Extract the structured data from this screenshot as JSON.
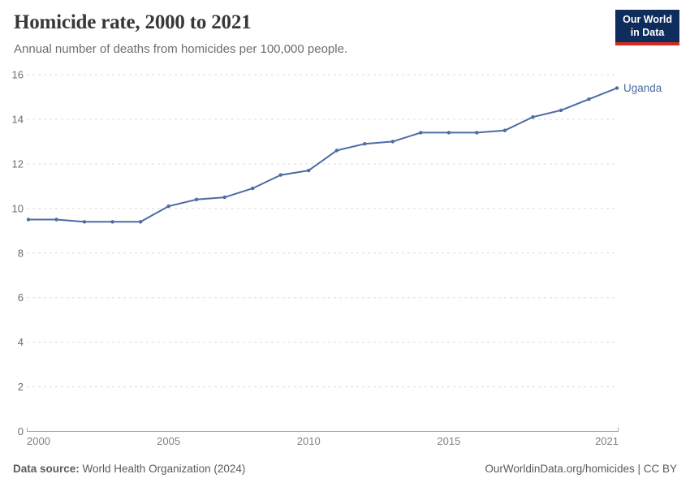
{
  "header": {
    "title": "Homicide rate, 2000 to 2021",
    "subtitle": "Annual number of deaths from homicides per 100,000 people.",
    "logo": {
      "line1": "Our World",
      "line2": "in Data"
    }
  },
  "colors": {
    "series_blue": "#4d6ba3",
    "logo_navy": "#0f2d5c",
    "logo_red": "#d42b21",
    "gridline": "#dcdcdc",
    "axis_line": "#a3a3a3",
    "ytick_label": "#6e6e6e",
    "xtick_label": "#808080",
    "title_text": "#373737",
    "subtitle_text": "#6e6e6e",
    "footer_text": "#5b5b5b"
  },
  "chart_data": {
    "type": "line",
    "title": "Homicide rate, 2000 to 2021",
    "xlabel": "",
    "ylabel": "",
    "x": [
      2000,
      2001,
      2002,
      2003,
      2004,
      2005,
      2006,
      2007,
      2008,
      2009,
      2010,
      2011,
      2012,
      2013,
      2014,
      2015,
      2016,
      2017,
      2018,
      2019,
      2020,
      2021
    ],
    "series": [
      {
        "name": "Uganda",
        "values": [
          9.5,
          9.5,
          9.4,
          9.4,
          9.4,
          10.1,
          10.4,
          10.5,
          10.9,
          11.5,
          11.7,
          12.6,
          12.9,
          13.0,
          13.4,
          13.4,
          13.4,
          13.5,
          14.1,
          14.4,
          14.9,
          15.4
        ]
      }
    ],
    "ylim": [
      0,
      16
    ],
    "yticks": [
      0,
      2,
      4,
      6,
      8,
      10,
      12,
      14,
      16
    ],
    "xticks": [
      2000,
      2005,
      2010,
      2015,
      2021
    ],
    "grid": "horizontal-dashed",
    "legend": "line-end-label"
  },
  "footer": {
    "source_label": "Data source:",
    "source_value": " World Health Organization (2024)",
    "credit": "OurWorldinData.org/homicides | CC BY"
  }
}
